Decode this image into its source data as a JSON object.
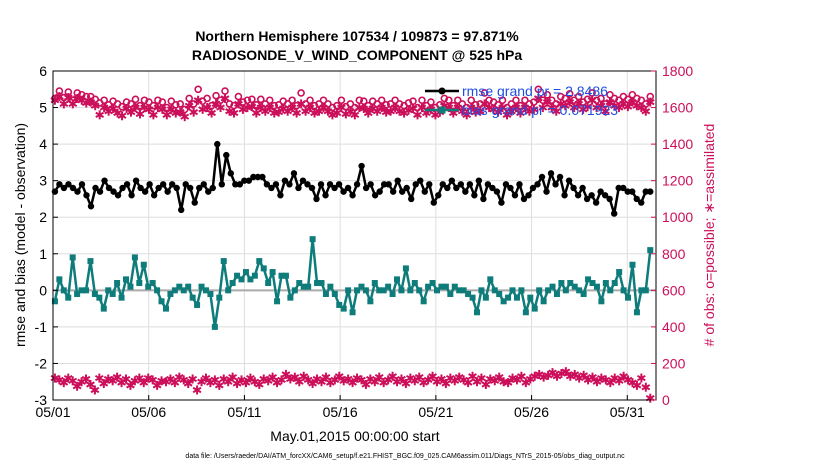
{
  "chart_data": {
    "type": "line",
    "title": "Northern Hemisphere 107534 / 109873 = 97.871%",
    "subtitle": "RADIOSONDE_V_WIND_COMPONENT @ 525 hPa",
    "xlabel": "May.01,2015 00:00:00 start",
    "ylabel_left": "rmse and bias (model - observation)",
    "ylabel_right": "# of obs: o=possible; ∗=assimilated",
    "footnote": "data file: /Users/raeder/DAI/ATM_forcXX/CAM6_setup/f.e21.FHIST_BGC.f09_025.CAM6assim.011/Diags_NTrS_2015-05/obs_diag_output.nc",
    "x_range": [
      0,
      31.5
    ],
    "ylim_left": [
      -3,
      6
    ],
    "ylim_right": [
      0,
      1800
    ],
    "x_tick_labels": [
      "05/01",
      "05/06",
      "05/11",
      "05/16",
      "05/21",
      "05/26",
      "05/31"
    ],
    "x_tick_days": [
      0,
      5,
      10,
      15,
      20,
      25,
      30
    ],
    "y_tick_labels_left": [
      "-3",
      "-2",
      "-1",
      "0",
      "1",
      "2",
      "3",
      "4",
      "5",
      "6"
    ],
    "y_tick_labels_right": [
      "0",
      "200",
      "400",
      "600",
      "800",
      "1000",
      "1200",
      "1400",
      "1600",
      "1800"
    ],
    "legend": {
      "position": "top-right",
      "entries": [
        "rmse grand pr = 2.8486",
        "bias grand pr = 0.071923"
      ]
    },
    "colors": {
      "rmse": "#000000",
      "bias": "#0e7c7b",
      "obs": "#cc0f5a",
      "legend_text": "#1f4fe0",
      "zero_line": "#aaaaaa",
      "grid": "#dedede"
    },
    "series": [
      {
        "name": "rmse",
        "axis": "left",
        "values": [
          2.7,
          2.9,
          2.8,
          2.9,
          2.8,
          2.7,
          2.9,
          2.6,
          2.3,
          2.8,
          2.7,
          3.0,
          2.8,
          2.7,
          2.6,
          2.8,
          2.9,
          2.6,
          3.0,
          2.8,
          2.7,
          2.9,
          2.6,
          2.8,
          2.9,
          2.7,
          2.9,
          2.8,
          2.2,
          2.9,
          2.8,
          2.4,
          2.8,
          2.9,
          2.7,
          2.8,
          4.0,
          2.9,
          3.7,
          3.2,
          2.9,
          2.9,
          3.0,
          3.0,
          3.1,
          3.1,
          3.1,
          2.9,
          2.8,
          2.9,
          2.6,
          3.0,
          2.9,
          3.2,
          2.8,
          3.0,
          2.9,
          2.8,
          2.5,
          2.9,
          2.6,
          2.9,
          2.8,
          2.9,
          2.7,
          2.8,
          2.6,
          2.9,
          3.4,
          2.8,
          2.9,
          2.6,
          2.7,
          2.9,
          2.9,
          2.7,
          3.0,
          2.7,
          2.8,
          2.5,
          2.9,
          3.0,
          2.7,
          2.9,
          2.4,
          2.6,
          2.9,
          2.8,
          3.0,
          2.8,
          2.9,
          2.7,
          2.9,
          2.6,
          3.0,
          2.5,
          2.9,
          2.8,
          2.7,
          2.4,
          2.9,
          2.8,
          2.6,
          2.9,
          2.5,
          2.6,
          2.8,
          2.9,
          3.1,
          2.7,
          3.2,
          2.9,
          3.1,
          2.6,
          3.0,
          2.8,
          2.6,
          2.8,
          2.5,
          2.6,
          2.4,
          2.7,
          2.6,
          2.5,
          2.1,
          2.8,
          2.8,
          2.7,
          2.7,
          2.5,
          2.4,
          2.7,
          2.7
        ]
      },
      {
        "name": "bias",
        "axis": "left",
        "values": [
          -0.3,
          0.3,
          0.0,
          -0.2,
          0.9,
          -0.1,
          0.0,
          0.0,
          0.8,
          -0.1,
          -0.2,
          -0.5,
          0.0,
          -0.1,
          0.2,
          -0.2,
          0.3,
          0.1,
          0.9,
          0.2,
          0.7,
          0.1,
          0.2,
          0.0,
          -0.3,
          -0.5,
          -0.1,
          0.0,
          0.1,
          0.0,
          0.1,
          -0.2,
          -0.4,
          0.1,
          0.0,
          -0.1,
          -1.0,
          -0.2,
          0.8,
          0.0,
          0.2,
          0.4,
          0.3,
          0.5,
          0.3,
          0.4,
          0.8,
          0.6,
          0.2,
          0.5,
          -0.3,
          0.4,
          0.4,
          -0.2,
          0.0,
          0.2,
          0.1,
          0.1,
          1.4,
          0.2,
          0.2,
          -0.1,
          0.1,
          -0.1,
          -0.4,
          -0.5,
          0.0,
          -0.6,
          0.0,
          0.1,
          0.0,
          -0.3,
          0.2,
          0.0,
          0.0,
          0.1,
          -0.1,
          0.3,
          0.0,
          0.6,
          0.0,
          0.2,
          0.0,
          -0.3,
          0.1,
          0.2,
          0.0,
          0.1,
          0.1,
          -0.1,
          0.1,
          0.0,
          0.0,
          -0.1,
          -0.2,
          -0.6,
          0.0,
          -0.2,
          0.3,
          0.0,
          -0.1,
          -0.3,
          -0.2,
          0.0,
          -0.2,
          0.0,
          -0.6,
          -0.2,
          -0.5,
          0.0,
          -0.3,
          0.0,
          0.1,
          -0.1,
          0.2,
          0.0,
          0.2,
          0.1,
          0.0,
          -0.1,
          0.3,
          0.2,
          0.1,
          -0.3,
          0.2,
          0.0,
          0.2,
          0.5,
          0.0,
          -0.2,
          0.7,
          -0.6,
          0.0,
          0.0,
          1.1
        ]
      },
      {
        "name": "obs_possible",
        "axis": "right",
        "marker": "o",
        "values": [
          1650,
          1690,
          1655,
          1685,
          1640,
          1680,
          1670,
          1660,
          1660,
          1645,
          1625,
          1640,
          1615,
          1635,
          1620,
          1605,
          1630,
          1620,
          1645,
          1610,
          1640,
          1630,
          1610,
          1640,
          1630,
          1600,
          1635,
          1615,
          1620,
          1590,
          1650,
          1620,
          1700,
          1635,
          1650,
          1610,
          1665,
          1640,
          1690,
          1620,
          1610,
          1660,
          1630,
          1640,
          1645,
          1615,
          1645,
          1620,
          1640,
          1610,
          1615,
          1635,
          1620,
          1640,
          1610,
          1680,
          1620,
          1640,
          1610,
          1620,
          1640,
          1620,
          1600,
          1610,
          1640,
          1605,
          1620,
          1600,
          1640,
          1635,
          1610,
          1635,
          1620,
          1640,
          1615,
          1620,
          1640,
          1620,
          1610,
          1625,
          1635,
          1600,
          1640,
          1610,
          1630,
          1600,
          1615,
          1650,
          1640,
          1610,
          1640,
          1620,
          1600,
          1640,
          1615,
          1620,
          1680,
          1640,
          1630,
          1615,
          1640,
          1600,
          1620,
          1640,
          1610,
          1640,
          1620,
          1630,
          1700,
          1640,
          1670,
          1640,
          1620,
          1660,
          1650,
          1675,
          1640,
          1660,
          1630,
          1645,
          1680,
          1640,
          1650,
          1620,
          1670,
          1650,
          1640,
          1660,
          1645,
          1670,
          1650,
          1640,
          1620,
          1660
        ]
      },
      {
        "name": "obs_assimilated",
        "axis": "right",
        "marker": "*",
        "values": [
          1640,
          1660,
          1620,
          1655,
          1620,
          1650,
          1640,
          1625,
          1630,
          1610,
          1560,
          1600,
          1580,
          1595,
          1570,
          1555,
          1595,
          1575,
          1600,
          1565,
          1600,
          1590,
          1560,
          1600,
          1590,
          1560,
          1590,
          1570,
          1575,
          1550,
          1610,
          1575,
          1640,
          1590,
          1600,
          1570,
          1620,
          1600,
          1650,
          1580,
          1570,
          1620,
          1590,
          1600,
          1605,
          1570,
          1600,
          1580,
          1600,
          1570,
          1575,
          1595,
          1580,
          1600,
          1570,
          1620,
          1580,
          1600,
          1570,
          1580,
          1600,
          1580,
          1560,
          1570,
          1600,
          1565,
          1580,
          1560,
          1600,
          1595,
          1570,
          1595,
          1580,
          1600,
          1575,
          1580,
          1600,
          1580,
          1570,
          1585,
          1595,
          1560,
          1600,
          1570,
          1590,
          1560,
          1575,
          1610,
          1600,
          1570,
          1600,
          1580,
          1560,
          1600,
          1575,
          1580,
          1620,
          1600,
          1590,
          1575,
          1600,
          1560,
          1580,
          1600,
          1570,
          1600,
          1580,
          1590,
          1650,
          1600,
          1630,
          1600,
          1580,
          1620,
          1610,
          1630,
          1600,
          1620,
          1590,
          1605,
          1640,
          1600,
          1610,
          1580,
          1630,
          1610,
          1600,
          1620,
          1605,
          1630,
          1610,
          1600,
          1580,
          1630
        ]
      },
      {
        "name": "obs_rejected",
        "axis": "right",
        "marker": "*",
        "values": [
          120,
          110,
          95,
          120,
          105,
          75,
          100,
          115,
          85,
          55,
          120,
          90,
          115,
          105,
          125,
          95,
          115,
          80,
          105,
          120,
          95,
          120,
          110,
          80,
          105,
          100,
          115,
          95,
          125,
          110,
          90,
          115,
          55,
          100,
          120,
          95,
          110,
          80,
          115,
          100,
          125,
          90,
          110,
          95,
          120,
          100,
          85,
          115,
          105,
          125,
          95,
          110,
          140,
          115,
          125,
          100,
          130,
          110,
          90,
          115,
          100,
          125,
          95,
          110,
          130,
          105,
          115,
          95,
          120,
          110,
          85,
          115,
          100,
          125,
          95,
          110,
          130,
          100,
          115,
          90,
          120,
          105,
          125,
          95,
          110,
          130,
          100,
          115,
          90,
          120,
          105,
          125,
          110,
          95,
          130,
          100,
          120,
          85,
          115,
          105,
          125,
          100,
          95,
          120,
          110,
          130,
          95,
          115,
          130,
          140,
          125,
          135,
          150,
          130,
          145,
          155,
          130,
          140,
          120,
          135,
          110,
          125,
          100,
          120,
          110,
          95,
          120,
          105,
          130,
          110,
          95,
          80,
          120,
          70,
          10
        ]
      }
    ]
  }
}
